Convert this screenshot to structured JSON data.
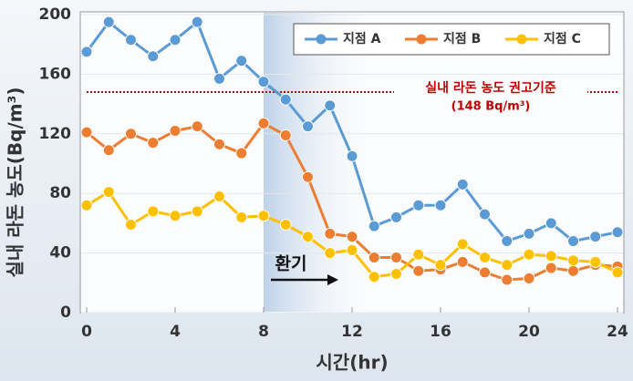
{
  "chart_data": {
    "type": "line",
    "x_label": "시간(hr)",
    "y_label": "실내 라돈 농도(Bq/m³)",
    "x": [
      0,
      1,
      2,
      3,
      4,
      5,
      6,
      7,
      8,
      9,
      10,
      11,
      12,
      13,
      14,
      15,
      16,
      17,
      18,
      19,
      20,
      21,
      22,
      23,
      24
    ],
    "series": [
      {
        "name": "지점 A",
        "color": "#5b9bd5",
        "values": [
          175,
          195,
          183,
          172,
          183,
          195,
          157,
          169,
          155,
          143,
          125,
          139,
          105,
          58,
          64,
          72,
          72,
          86,
          66,
          48,
          53,
          60,
          48,
          51,
          54
        ]
      },
      {
        "name": "지점 B",
        "color": "#ed7d31",
        "values": [
          121,
          109,
          120,
          114,
          122,
          125,
          113,
          107,
          127,
          119,
          91,
          53,
          51,
          37,
          37,
          28,
          29,
          34,
          27,
          22,
          23,
          30,
          28,
          32,
          31
        ]
      },
      {
        "name": "지점 C",
        "color": "#ffc000",
        "values": [
          72,
          81,
          59,
          68,
          65,
          68,
          78,
          64,
          65,
          59,
          51,
          40,
          42,
          24,
          26,
          39,
          32,
          46,
          37,
          32,
          39,
          38,
          35,
          34,
          27
        ]
      }
    ],
    "xlim": [
      0,
      24
    ],
    "xticks": [
      0,
      4,
      8,
      12,
      16,
      20,
      24
    ],
    "ylim": [
      0,
      200
    ],
    "yticks": [
      0,
      40,
      80,
      120,
      160,
      200
    ],
    "grid": true,
    "legend": "top-right",
    "reference": {
      "value": 148,
      "color": "#c00000",
      "label": "실내 라돈 농도 권고기준",
      "sublabel": "(148 Bq/m³)"
    },
    "annotation": {
      "text": "환기",
      "x": 8
    }
  }
}
